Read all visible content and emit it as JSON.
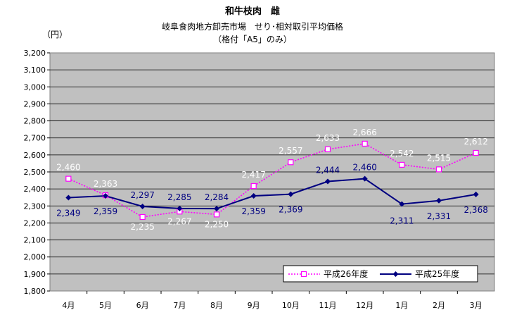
{
  "chart_data": {
    "type": "line",
    "title": "和牛枝肉　雌",
    "subtitle_lines": [
      "岐阜食肉地方卸売市場　せり･相対取引平均価格",
      "（格付「A5」のみ）"
    ],
    "y_unit": "（円）",
    "categories": [
      "4月",
      "5月",
      "6月",
      "7月",
      "8月",
      "9月",
      "10月",
      "11月",
      "12月",
      "1月",
      "2月",
      "3月"
    ],
    "ylim": [
      1800,
      3200
    ],
    "ytick_step": 100,
    "ytick_labels": [
      "1,800",
      "1,900",
      "2,000",
      "2,100",
      "2,200",
      "2,300",
      "2,400",
      "2,500",
      "2,600",
      "2,700",
      "2,800",
      "2,900",
      "3,000",
      "3,100",
      "3,200"
    ],
    "grid": true,
    "legend_position": "bottom-right",
    "series": [
      {
        "name": "平成26年度",
        "color": "#ff00ff",
        "marker": "square-open",
        "values": [
          2460,
          2363,
          2235,
          2267,
          2250,
          2417,
          2557,
          2633,
          2666,
          2542,
          2515,
          2612
        ],
        "labels": [
          "2,460",
          "2,363",
          "2,235",
          "2,267",
          "2,250",
          "2,417",
          "2,557",
          "2,633",
          "2,666",
          "2,542",
          "2,515",
          "2,612"
        ]
      },
      {
        "name": "平成25年度",
        "color": "#000080",
        "marker": "diamond-filled",
        "values": [
          2349,
          2359,
          2297,
          2285,
          2284,
          2359,
          2369,
          2444,
          2460,
          2311,
          2331,
          2368
        ],
        "labels": [
          "2,349",
          "2,359",
          "2,297",
          "2,285",
          "2,284",
          "2,359",
          "2,369",
          "2,444",
          "2,460",
          "2,311",
          "2,331",
          "2,368"
        ]
      }
    ]
  }
}
